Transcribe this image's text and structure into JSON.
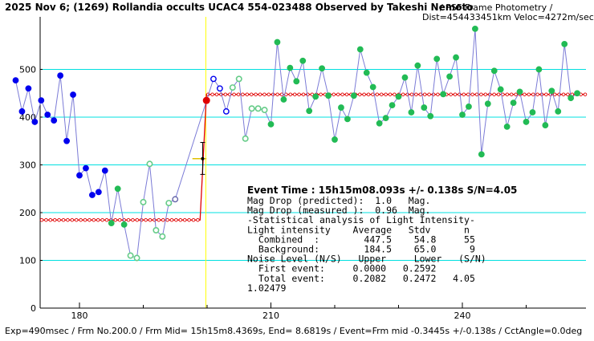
{
  "chart_data": {
    "type": "scatter",
    "title": "2025 Nov 6; (1269) Rollandia occults UCAC4 554-023488 Observed by Takeshi Nemoto",
    "subtitle": "/ PSF-Frame Photometry /",
    "subtitle2": "Dist=454433451km Veloc=4272m/sec",
    "xlim": [
      170,
      248
    ],
    "ylim": [
      0,
      610
    ],
    "x_ticks": [
      180,
      210,
      240
    ],
    "y_ticks": [
      0,
      100,
      200,
      300,
      400,
      500
    ],
    "grid_y": [
      100,
      200,
      300,
      400,
      500
    ],
    "event_x": 199.8,
    "background_level": 184.5,
    "combined_level": 447.5,
    "step_x": [
      198.9,
      199.9
    ],
    "error_bar": {
      "x": 199.3,
      "y": 313,
      "low": 280,
      "high": 347
    },
    "uncertainty_hbar": {
      "y": 313,
      "x_from": 197.7,
      "x_to": 199.9
    },
    "red_marker": {
      "x": 199.9,
      "y": 435
    },
    "series": [
      {
        "kind": "blue-filled",
        "points": [
          [
            170,
            477
          ],
          [
            171,
            412
          ],
          [
            172,
            460
          ],
          [
            173,
            390
          ],
          [
            174,
            435
          ],
          [
            175,
            405
          ],
          [
            176,
            393
          ],
          [
            177,
            487
          ],
          [
            178,
            350
          ],
          [
            179,
            447
          ],
          [
            180,
            278
          ],
          [
            181,
            293
          ],
          [
            182,
            237
          ],
          [
            183,
            243
          ],
          [
            184,
            288
          ]
        ]
      },
      {
        "kind": "green-filled",
        "points": [
          [
            185,
            178
          ],
          [
            186,
            250
          ],
          [
            187,
            175
          ]
        ]
      },
      {
        "kind": "green-open",
        "points": [
          [
            188,
            110
          ],
          [
            189,
            105
          ],
          [
            190,
            222
          ],
          [
            191,
            302
          ],
          [
            192,
            163
          ],
          [
            193,
            150
          ],
          [
            194,
            220
          ]
        ]
      },
      {
        "kind": "ring-open",
        "points": [
          [
            195,
            228
          ]
        ]
      },
      {
        "kind": "blue-open",
        "points": [
          [
            201,
            480
          ],
          [
            202,
            460
          ],
          [
            203,
            412
          ]
        ]
      },
      {
        "kind": "green-open",
        "points": [
          [
            204,
            462
          ],
          [
            205,
            480
          ],
          [
            206,
            355
          ],
          [
            207,
            418
          ],
          [
            208,
            418
          ],
          [
            209,
            415
          ]
        ]
      },
      {
        "kind": "green-filled",
        "points": [
          [
            210,
            385
          ],
          [
            211,
            557
          ],
          [
            212,
            437
          ],
          [
            213,
            503
          ],
          [
            214,
            475
          ],
          [
            215,
            518
          ],
          [
            216,
            413
          ],
          [
            217,
            443
          ],
          [
            218,
            502
          ],
          [
            219,
            445
          ],
          [
            220,
            353
          ],
          [
            221,
            420
          ],
          [
            222,
            396
          ],
          [
            223,
            445
          ],
          [
            224,
            542
          ],
          [
            225,
            493
          ],
          [
            226,
            463
          ],
          [
            227,
            387
          ],
          [
            228,
            398
          ],
          [
            229,
            425
          ],
          [
            230,
            443
          ],
          [
            231,
            483
          ],
          [
            232,
            410
          ],
          [
            233,
            508
          ],
          [
            234,
            420
          ],
          [
            235,
            402
          ],
          [
            236,
            522
          ],
          [
            237,
            448
          ],
          [
            238,
            485
          ],
          [
            239,
            525
          ],
          [
            240,
            405
          ],
          [
            241,
            422
          ],
          [
            242,
            585
          ],
          [
            243,
            322
          ],
          [
            244,
            428
          ],
          [
            245,
            497
          ],
          [
            246,
            458
          ],
          [
            247,
            380
          ],
          [
            248,
            430
          ],
          [
            249,
            453
          ],
          [
            250,
            390
          ],
          [
            251,
            410
          ],
          [
            252,
            500
          ],
          [
            253,
            383
          ],
          [
            254,
            455
          ],
          [
            255,
            412
          ],
          [
            256,
            553
          ],
          [
            257,
            440
          ],
          [
            258,
            450
          ]
        ]
      }
    ]
  },
  "annotations": {
    "event_time": "Event Time : 15h15m08.093s  +/- 0.138s  S/N=4.05",
    "lines": [
      "Mag Drop (predicted):  1.0   Mag.",
      "Mag Drop (measured ):  0.96  Mag.",
      "-Statistical analysis of Light Intensity-",
      "Light intensity    Average   Stdv      n",
      "  Combined  :        447.5    54.8     55",
      "  Background:        184.5    65.0      9",
      "Noise Level (N/S)   Upper     Lower   (S/N)",
      "  First event:     0.0000   0.2592",
      "  Total event:     0.2082   0.2472   4.05",
      "1.02479"
    ]
  },
  "footer": "Exp=490msec / Frm No.200.0 / Frm Mid= 15h15m8.4369s, End= 8.6819s / Event=Frm mid -0.3445s +/-0.138s / CctAngle=0.0deg",
  "colors": {
    "grid": "#00e0e0",
    "line": "#7b7bd6",
    "fit": "#e00000",
    "event": "#ffff00",
    "blue": "#0000ee",
    "green": "#22bb55",
    "open_green": "#66cc88"
  }
}
